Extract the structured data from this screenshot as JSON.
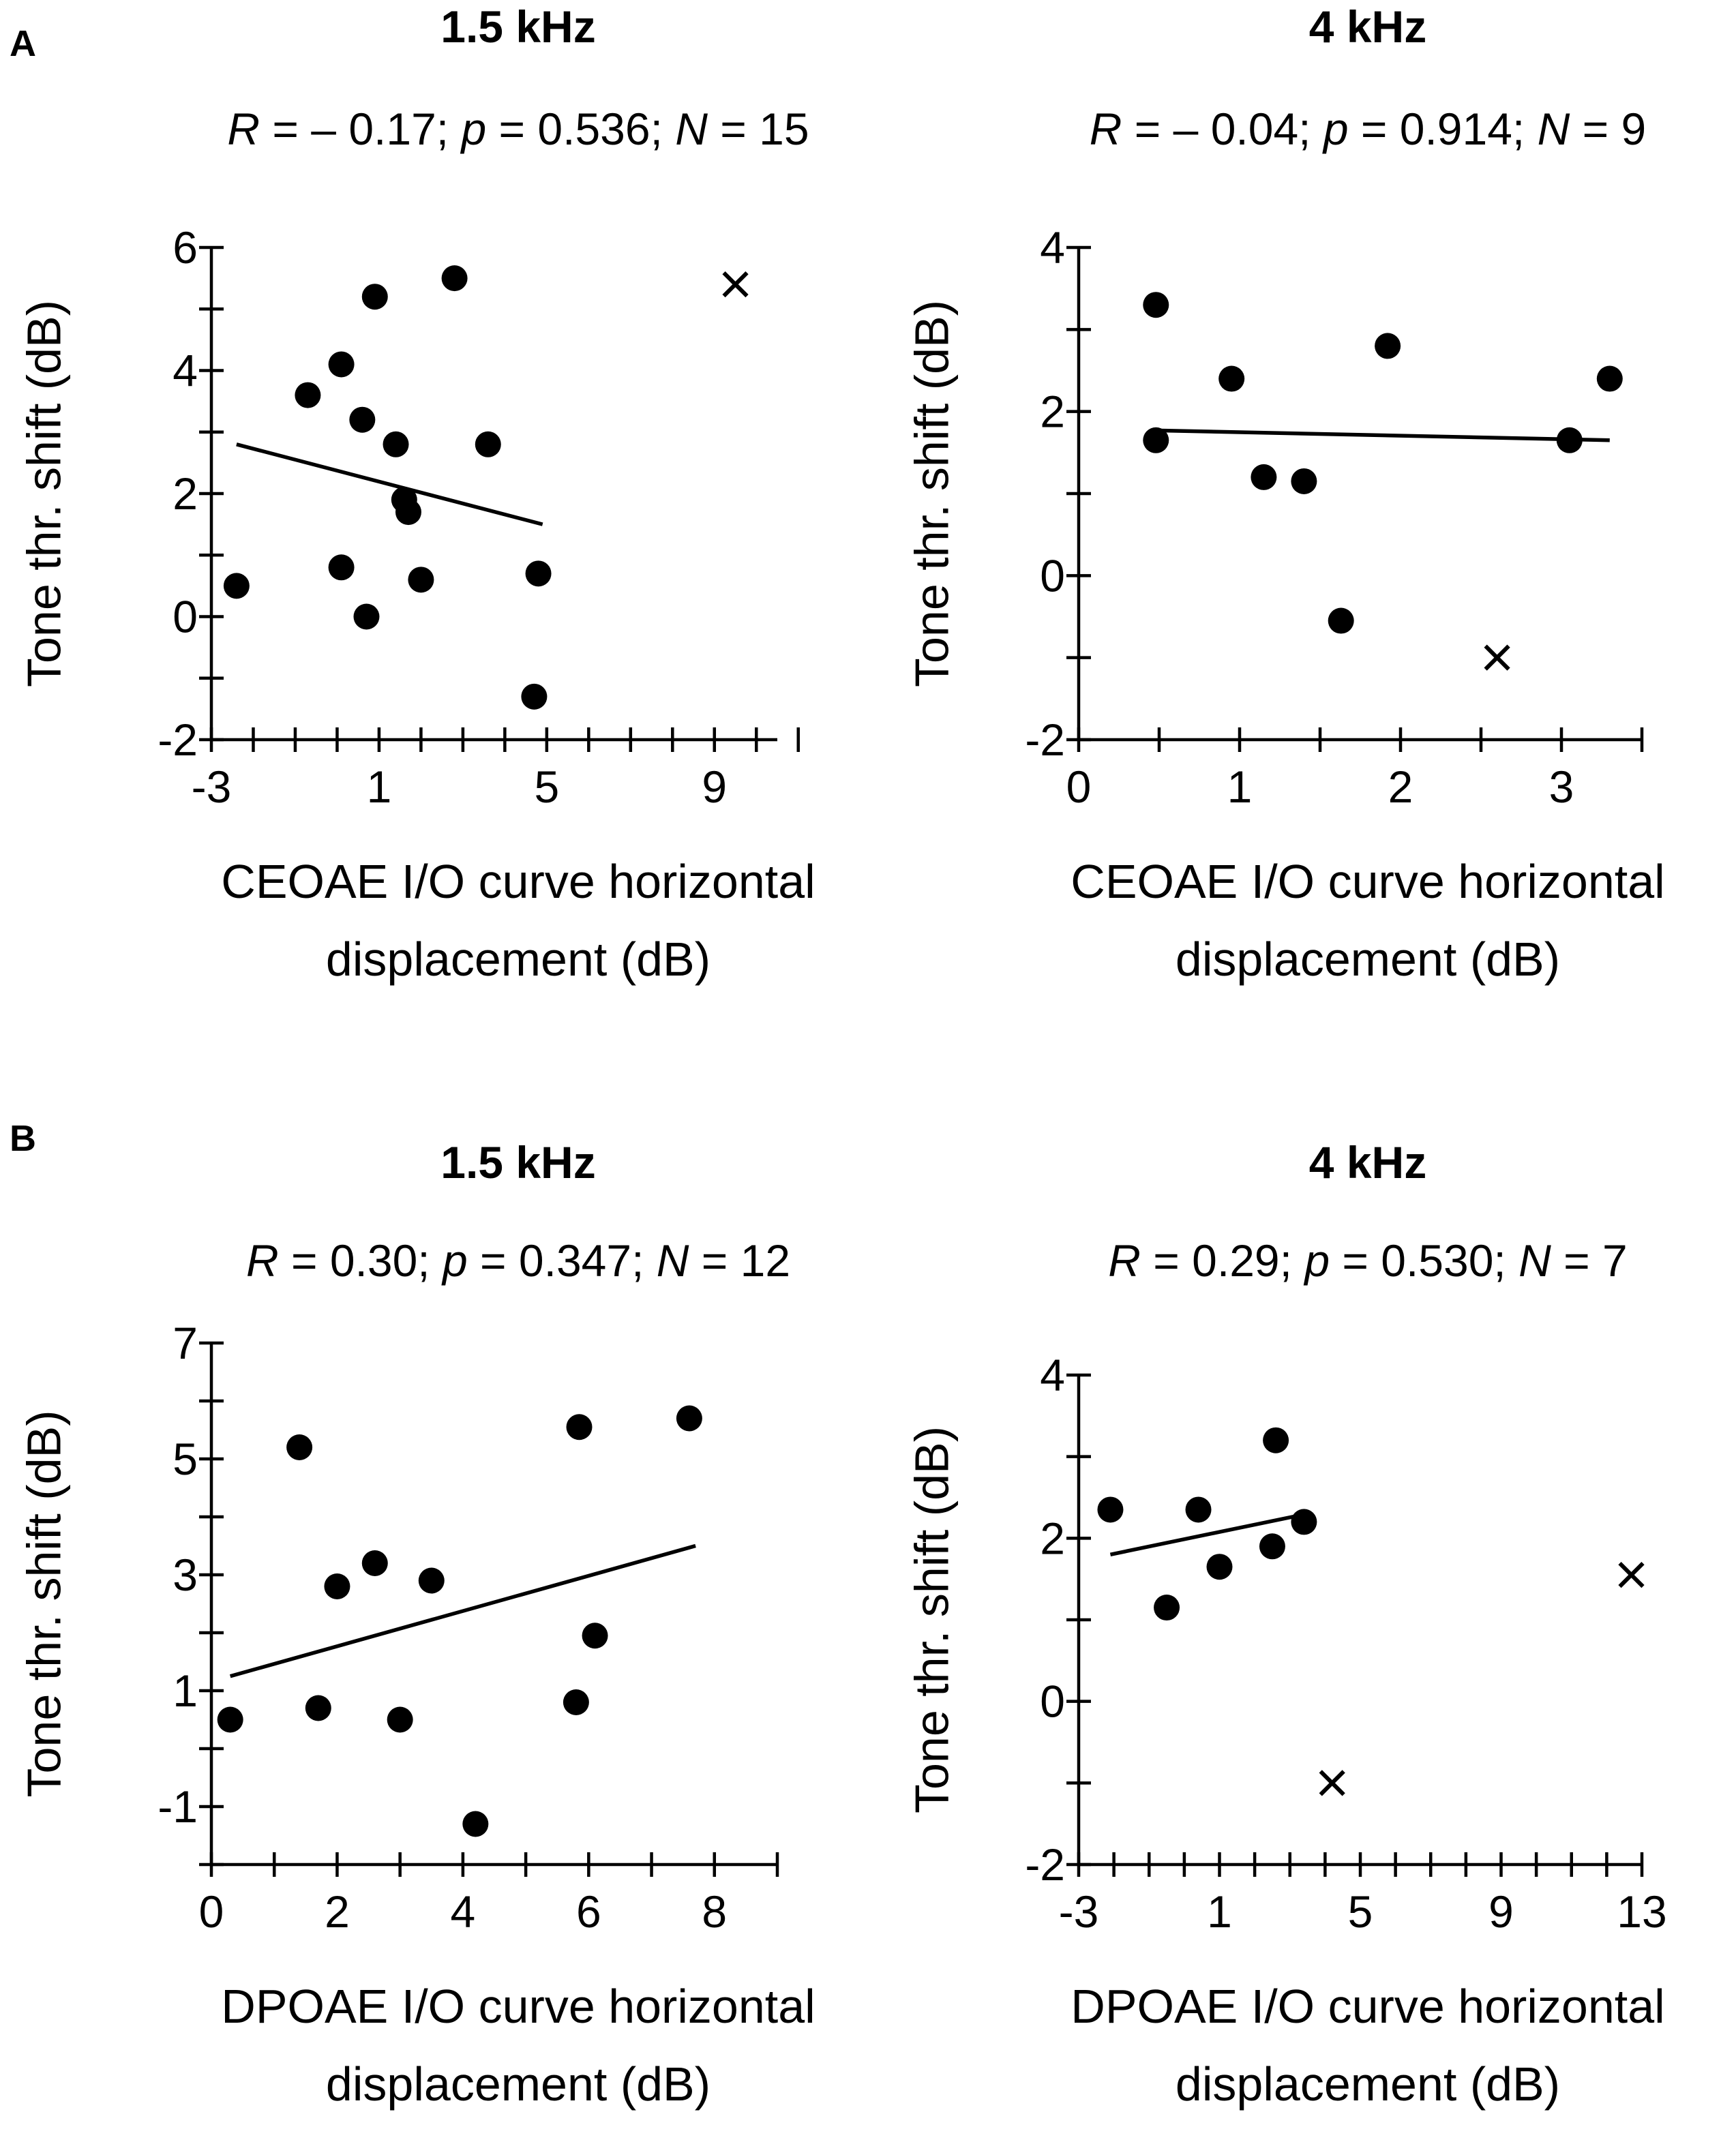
{
  "panel_labels": [
    "A",
    "B"
  ],
  "chart_data": [
    {
      "type": "scatter",
      "panel": "A",
      "title": "1.5 kHz",
      "stats": {
        "R": "– 0.17",
        "p": "0.536",
        "N": "15"
      },
      "xlabel": [
        "CEOAE I/O curve horizontal",
        "displacement (dB)"
      ],
      "ylabel": "Tone thr. shift (dB)",
      "xlim": [
        -3,
        10.5
      ],
      "ylim": [
        -2,
        6
      ],
      "xticks": [
        -3,
        1,
        5,
        9
      ],
      "xminor": 1,
      "yticks": [
        -2,
        0,
        2,
        4,
        6
      ],
      "yminor": 1,
      "points": [
        [
          -2.4,
          0.5
        ],
        [
          -0.7,
          3.6
        ],
        [
          0.1,
          0.8
        ],
        [
          0.1,
          4.1
        ],
        [
          0.6,
          3.2
        ],
        [
          0.7,
          0
        ],
        [
          0.9,
          5.2
        ],
        [
          1.4,
          2.8
        ],
        [
          1.6,
          1.9
        ],
        [
          1.7,
          1.7
        ],
        [
          2.0,
          0.6
        ],
        [
          2.8,
          5.5
        ],
        [
          3.6,
          2.8
        ],
        [
          4.7,
          -1.3
        ],
        [
          4.8,
          0.7
        ]
      ],
      "excluded": [
        [
          9.5,
          5.4
        ]
      ],
      "fit": {
        "x": [
          -2.4,
          4.9
        ],
        "y": [
          2.8,
          1.5
        ]
      }
    },
    {
      "type": "scatter",
      "panel": "A",
      "title": "4 kHz",
      "stats": {
        "R": "– 0.04",
        "p": "0.914",
        "N": "9"
      },
      "xlabel": [
        "CEOAE I/O curve horizontal",
        "displacement (dB)"
      ],
      "ylabel": "Tone thr. shift (dB)",
      "xlim": [
        0,
        3.5
      ],
      "ylim": [
        -2,
        4
      ],
      "xticks": [
        0,
        1,
        2,
        3
      ],
      "xminor": 0.5,
      "yticks": [
        -2,
        0,
        2,
        4
      ],
      "yminor": 1,
      "points": [
        [
          0.48,
          3.3
        ],
        [
          0.48,
          1.65
        ],
        [
          0.95,
          2.4
        ],
        [
          1.15,
          1.2
        ],
        [
          1.4,
          1.15
        ],
        [
          1.63,
          -0.55
        ],
        [
          1.92,
          2.8
        ],
        [
          3.05,
          1.65
        ],
        [
          3.3,
          2.4
        ]
      ],
      "excluded": [
        [
          2.6,
          -1.0
        ]
      ],
      "fit": {
        "x": [
          0.48,
          3.3
        ],
        "y": [
          1.77,
          1.65
        ]
      }
    },
    {
      "type": "scatter",
      "panel": "B",
      "title": "1.5 kHz",
      "stats": {
        "R": "0.30",
        "p": "0.347",
        "N": "12"
      },
      "xlabel": [
        "DPOAE I/O curve horizontal",
        "displacement (dB)"
      ],
      "ylabel": "Tone thr. shift (dB)",
      "xlim": [
        0,
        9
      ],
      "ylim": [
        -2,
        7
      ],
      "xticks": [
        0,
        2,
        4,
        6,
        8
      ],
      "xminor": 1,
      "yticks": [
        -1,
        1,
        3,
        5,
        7
      ],
      "yminor": 1,
      "points": [
        [
          0.3,
          0.5
        ],
        [
          1.4,
          5.2
        ],
        [
          1.7,
          0.7
        ],
        [
          2.0,
          2.8
        ],
        [
          2.6,
          3.2
        ],
        [
          3.0,
          0.5
        ],
        [
          3.5,
          2.9
        ],
        [
          4.2,
          -1.3
        ],
        [
          5.8,
          0.8
        ],
        [
          5.85,
          5.55
        ],
        [
          6.1,
          1.95
        ],
        [
          7.6,
          5.7
        ]
      ],
      "excluded": [],
      "fit": {
        "x": [
          0.3,
          7.7
        ],
        "y": [
          1.25,
          3.5
        ]
      }
    },
    {
      "type": "scatter",
      "panel": "B",
      "title": "4 kHz",
      "stats": {
        "R": "0.29",
        "p": "0.530",
        "N": "7"
      },
      "xlabel": [
        "DPOAE I/O curve horizontal",
        "displacement (dB)"
      ],
      "ylabel": "Tone thr. shift (dB)",
      "xlim": [
        -3,
        13
      ],
      "ylim": [
        -2,
        4
      ],
      "xticks": [
        -3,
        1,
        5,
        9,
        13
      ],
      "xminor": 1,
      "yticks": [
        -2,
        0,
        2,
        4
      ],
      "yminor": 1,
      "points": [
        [
          -2.1,
          2.35
        ],
        [
          -0.5,
          1.15
        ],
        [
          0.4,
          2.35
        ],
        [
          1.0,
          1.65
        ],
        [
          2.5,
          1.9
        ],
        [
          2.6,
          3.2
        ],
        [
          3.4,
          2.2
        ]
      ],
      "excluded": [
        [
          4.2,
          -1.0
        ],
        [
          12.7,
          1.55
        ]
      ],
      "fit": {
        "x": [
          -2.1,
          3.5
        ],
        "y": [
          1.8,
          2.3
        ]
      }
    }
  ]
}
